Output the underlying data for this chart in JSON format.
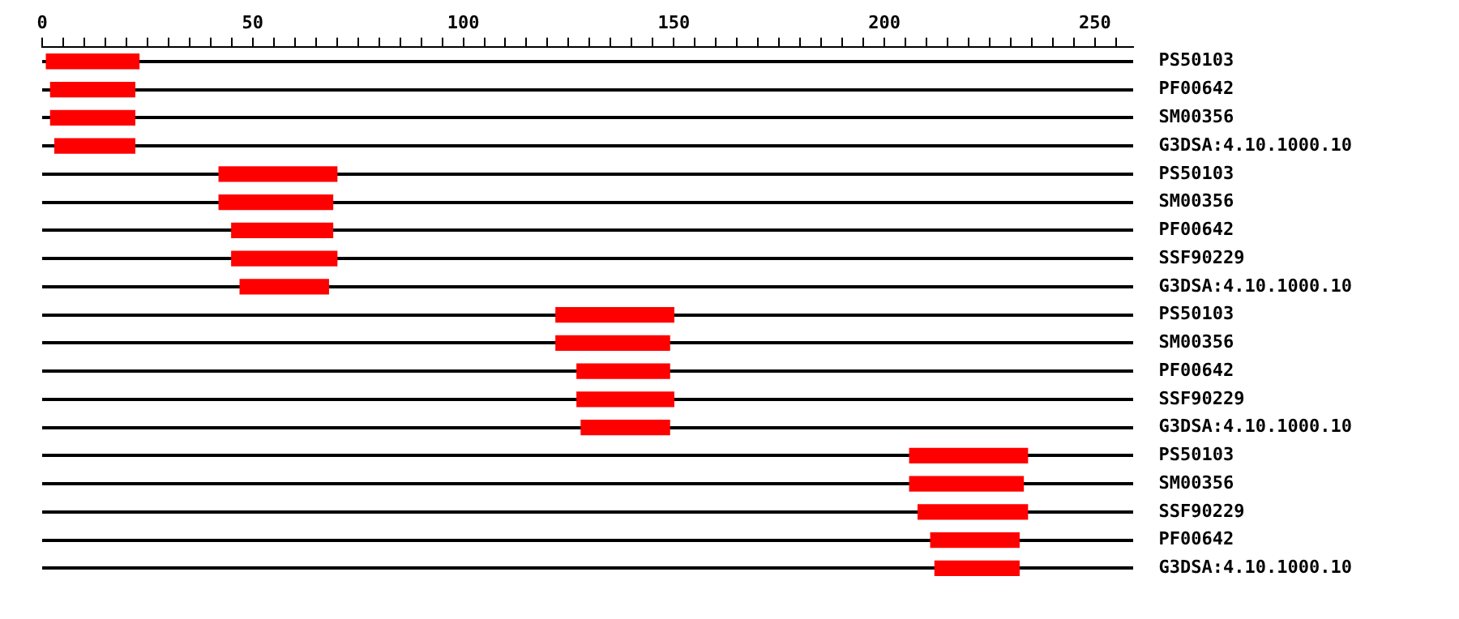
{
  "chart_data": {
    "type": "bar",
    "orientation": "horizontal",
    "categories": [
      "PS50103",
      "PF00642",
      "SM00356",
      "G3DSA:4.10.1000.10",
      "PS50103",
      "SM00356",
      "PF00642",
      "SSF90229",
      "G3DSA:4.10.1000.10",
      "PS50103",
      "SM00356",
      "PF00642",
      "SSF90229",
      "G3DSA:4.10.1000.10",
      "PS50103",
      "SM00356",
      "SSF90229",
      "PF00642",
      "G3DSA:4.10.1000.10"
    ],
    "base": [
      1,
      2,
      2,
      3,
      42,
      42,
      45,
      45,
      47,
      122,
      122,
      127,
      127,
      128,
      206,
      206,
      208,
      211,
      212
    ],
    "values": [
      22,
      20,
      20,
      19,
      28,
      27,
      24,
      25,
      21,
      28,
      27,
      22,
      23,
      21,
      28,
      27,
      26,
      21,
      20
    ],
    "color": "#ff0000",
    "xlim": [
      0,
      259
    ],
    "xticks": [
      0,
      {
        "value": 5,
        "label": null
      },
      {
        "value": 10,
        "label": null
      },
      {
        "value": 15,
        "label": null
      },
      {
        "value": 20,
        "label": null
      },
      {
        "value": 25,
        "label": null
      },
      {
        "value": 30,
        "label": null
      },
      {
        "value": 35,
        "label": null
      },
      {
        "value": 40,
        "label": null
      },
      {
        "value": 45,
        "label": null
      },
      50,
      {
        "value": 55,
        "label": null
      },
      {
        "value": 60,
        "label": null
      },
      {
        "value": 65,
        "label": null
      },
      {
        "value": 70,
        "label": null
      },
      {
        "value": 75,
        "label": null
      },
      {
        "value": 80,
        "label": null
      },
      {
        "value": 85,
        "label": null
      },
      {
        "value": 90,
        "label": null
      },
      {
        "value": 95,
        "label": null
      },
      100,
      {
        "value": 105,
        "label": null
      },
      {
        "value": 110,
        "label": null
      },
      {
        "value": 115,
        "label": null
      },
      {
        "value": 120,
        "label": null
      },
      {
        "value": 125,
        "label": null
      },
      {
        "value": 130,
        "label": null
      },
      {
        "value": 135,
        "label": null
      },
      {
        "value": 140,
        "label": null
      },
      {
        "value": 145,
        "label": null
      },
      150,
      {
        "value": 155,
        "label": null
      },
      {
        "value": 160,
        "label": null
      },
      {
        "value": 165,
        "label": null
      },
      {
        "value": 170,
        "label": null
      },
      {
        "value": 175,
        "label": null
      },
      {
        "value": 180,
        "label": null
      },
      {
        "value": 185,
        "label": null
      },
      {
        "value": 190,
        "label": null
      },
      {
        "value": 195,
        "label": null
      },
      200,
      {
        "value": 205,
        "label": null
      },
      {
        "value": 210,
        "label": null
      },
      {
        "value": 215,
        "label": null
      },
      {
        "value": 220,
        "label": null
      },
      {
        "value": 225,
        "label": null
      },
      {
        "value": 230,
        "label": null
      },
      {
        "value": 235,
        "label": null
      },
      {
        "value": 240,
        "label": null
      },
      {
        "value": 245,
        "label": null
      },
      250,
      {
        "value": 255,
        "label": null
      }
    ],
    "grid": "y"
  }
}
